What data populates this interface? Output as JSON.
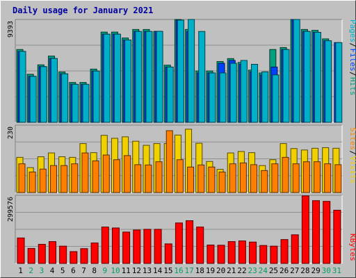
{
  "title": "Daily usage for January 2021",
  "colors": {
    "pages": "#00b0c8",
    "files": "#0040ff",
    "hits": "#00a080",
    "sites": "#ff8000",
    "visits": "#f0d000",
    "kbytes": "#ff0000",
    "weekday": "#000000",
    "weekend": "#00a060"
  },
  "chart_data": [
    {
      "type": "bar",
      "name": "hits-files-pages",
      "ymax_label": "9393",
      "ylim": [
        0,
        9393
      ],
      "categories": [
        "1",
        "2",
        "3",
        "4",
        "5",
        "6",
        "7",
        "8",
        "9",
        "10",
        "11",
        "12",
        "13",
        "14",
        "15",
        "16",
        "17",
        "18",
        "19",
        "20",
        "21",
        "22",
        "23",
        "24",
        "25",
        "26",
        "27",
        "28",
        "29",
        "30",
        "31"
      ],
      "weekend_days": [
        "2",
        "3",
        "9",
        "10",
        "16",
        "17",
        "23",
        "24",
        "30",
        "31"
      ],
      "series": [
        {
          "name": "Hits",
          "values": [
            6650,
            4390,
            5250,
            6050,
            4600,
            3640,
            3640,
            4860,
            8240,
            8240,
            7700,
            8480,
            8480,
            8310,
            5220,
            9510,
            8480,
            4690,
            4690,
            5550,
            5820,
            5470,
            4770,
            4510,
            6650,
            6830,
            9580,
            8480,
            8400,
            7620,
            null
          ]
        },
        {
          "name": "Files",
          "values": [
            6480,
            4200,
            5090,
            5830,
            4430,
            3470,
            3470,
            4680,
            8050,
            8050,
            7520,
            8300,
            8300,
            8310,
            5050,
            9330,
            8300,
            4510,
            4510,
            5390,
            5650,
            5300,
            4610,
            4330,
            5050,
            6650,
            9400,
            8300,
            8220,
            7450,
            7280
          ]
        },
        {
          "name": "Pages",
          "values": [
            6480,
            4200,
            5090,
            5830,
            4430,
            3470,
            3470,
            4680,
            8050,
            8050,
            7520,
            8300,
            8300,
            8310,
            5050,
            9330,
            9810,
            8300,
            4510,
            4510,
            5390,
            5650,
            5300,
            4610,
            4330,
            6650,
            9400,
            8300,
            8220,
            7450,
            7280
          ]
        }
      ],
      "legend": [
        "Pages",
        "Files",
        "Hits"
      ]
    },
    {
      "type": "bar",
      "name": "sites-visits",
      "ymax_label": "230",
      "ylim": [
        0,
        230
      ],
      "series": [
        {
          "name": "Visits",
          "values": [
            120,
            85,
            122,
            135,
            122,
            120,
            167,
            136,
            195,
            185,
            190,
            175,
            161,
            167,
            167,
            196,
            216,
            168,
            106,
            79,
            135,
            140,
            136,
            92,
            112,
            167,
            150,
            145,
            151,
            153,
            151
          ]
        },
        {
          "name": "Sites",
          "values": [
            98,
            70,
            80,
            92,
            92,
            98,
            135,
            108,
            128,
            112,
            126,
            95,
            94,
            105,
            211,
            112,
            87,
            94,
            87,
            70,
            98,
            101,
            95,
            75,
            98,
            120,
            98,
            105,
            105,
            98,
            95
          ]
        }
      ],
      "legend": [
        "Sites",
        "Visits"
      ]
    },
    {
      "type": "bar",
      "name": "kbytes",
      "ymax_label": "299576",
      "ylim": [
        0,
        299576
      ],
      "series": [
        {
          "name": "KBytes",
          "values": [
            112000,
            66000,
            84000,
            96000,
            76000,
            52000,
            65000,
            90000,
            160000,
            156000,
            138000,
            147000,
            150000,
            150000,
            86000,
            178000,
            188000,
            160000,
            81000,
            80000,
            96000,
            99000,
            94000,
            79000,
            76000,
            105000,
            126000,
            297000,
            276000,
            273000,
            234000
          ]
        }
      ],
      "legend": [
        "KBytes"
      ]
    }
  ]
}
